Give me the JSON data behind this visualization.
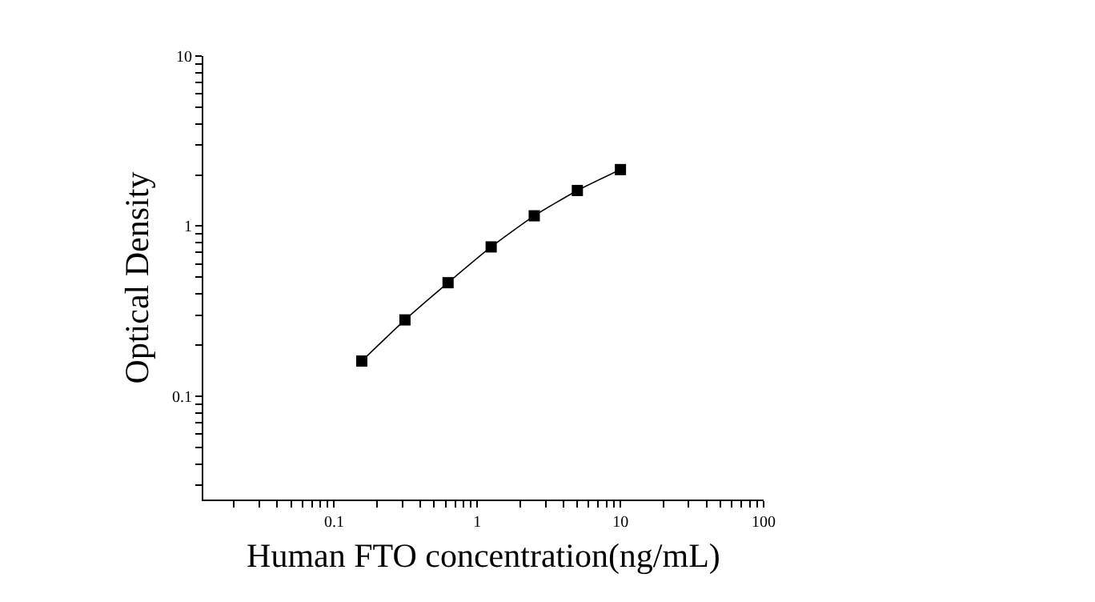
{
  "chart_data": {
    "type": "line",
    "xlabel": "Human FTO concentration(ng/mL)",
    "ylabel": "Optical Density",
    "log": "xy",
    "marker": "square",
    "line_style": "solid",
    "grid": false,
    "x": [
      0.156,
      0.3125,
      0.625,
      1.25,
      2.5,
      5,
      10
    ],
    "series": [
      {
        "color": "#000000",
        "values": [
          0.161,
          0.281,
          0.465,
          0.755,
          1.15,
          1.62,
          2.15
        ]
      }
    ],
    "xlim": [
      0.0122,
      100
    ],
    "xticks": [
      {
        "value": 0.02,
        "label": null
      },
      {
        "value": 0.03,
        "label": null
      },
      {
        "value": 0.04,
        "label": null
      },
      {
        "value": 0.05,
        "label": null
      },
      {
        "value": 0.06,
        "label": null
      },
      {
        "value": 0.07,
        "label": null
      },
      {
        "value": 0.08,
        "label": null
      },
      {
        "value": 0.09,
        "label": null
      },
      0.1,
      {
        "value": 0.2,
        "label": null
      },
      {
        "value": 0.3,
        "label": null
      },
      {
        "value": 0.4,
        "label": null
      },
      {
        "value": 0.5,
        "label": null
      },
      {
        "value": 0.6,
        "label": null
      },
      {
        "value": 0.7,
        "label": null
      },
      {
        "value": 0.8,
        "label": null
      },
      {
        "value": 0.9,
        "label": null
      },
      1,
      {
        "value": 2,
        "label": null
      },
      {
        "value": 3,
        "label": null
      },
      {
        "value": 4,
        "label": null
      },
      {
        "value": 5,
        "label": null
      },
      {
        "value": 6,
        "label": null
      },
      {
        "value": 7,
        "label": null
      },
      {
        "value": 8,
        "label": null
      },
      {
        "value": 9,
        "label": null
      },
      10,
      {
        "value": 20,
        "label": null
      },
      {
        "value": 30,
        "label": null
      },
      {
        "value": 40,
        "label": null
      },
      {
        "value": 50,
        "label": null
      },
      {
        "value": 60,
        "label": null
      },
      {
        "value": 70,
        "label": null
      },
      {
        "value": 80,
        "label": null
      },
      {
        "value": 90,
        "label": null
      },
      100
    ],
    "ylim": [
      0.0247,
      10
    ],
    "yticks": [
      {
        "value": 0.03,
        "label": null
      },
      {
        "value": 0.04,
        "label": null
      },
      {
        "value": 0.05,
        "label": null
      },
      {
        "value": 0.06,
        "label": null
      },
      {
        "value": 0.07,
        "label": null
      },
      {
        "value": 0.08,
        "label": null
      },
      {
        "value": 0.09,
        "label": null
      },
      0.1,
      {
        "value": 0.2,
        "label": null
      },
      {
        "value": 0.3,
        "label": null
      },
      {
        "value": 0.4,
        "label": null
      },
      {
        "value": 0.5,
        "label": null
      },
      {
        "value": 0.6,
        "label": null
      },
      {
        "value": 0.7,
        "label": null
      },
      {
        "value": 0.8,
        "label": null
      },
      {
        "value": 0.9,
        "label": null
      },
      1,
      {
        "value": 2,
        "label": null
      },
      {
        "value": 3,
        "label": null
      },
      {
        "value": 4,
        "label": null
      },
      {
        "value": 5,
        "label": null
      },
      {
        "value": 6,
        "label": null
      },
      {
        "value": 7,
        "label": null
      },
      {
        "value": 8,
        "label": null
      },
      {
        "value": 9,
        "label": null
      },
      10
    ]
  }
}
